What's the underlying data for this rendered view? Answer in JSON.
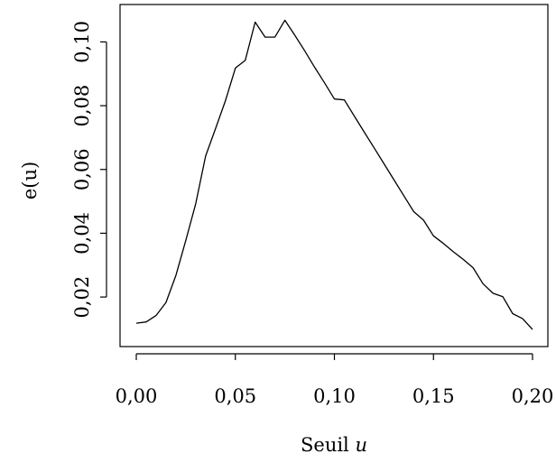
{
  "chart_data": {
    "type": "line",
    "title": "",
    "xlabel": "Seuil",
    "xlabel_var": "u",
    "ylabel": "e(u)",
    "xlim": [
      0.0,
      0.2
    ],
    "ylim": [
      0.0097,
      0.1072
    ],
    "x_ticks": [
      0.0,
      0.05,
      0.1,
      0.15,
      0.2
    ],
    "x_tick_labels": [
      "0,00",
      "0,05",
      "0,10",
      "0,15",
      "0,20"
    ],
    "y_ticks": [
      0.02,
      0.04,
      0.06,
      0.08,
      0.1
    ],
    "y_tick_labels": [
      "0,02",
      "0,04",
      "0,06",
      "0,08",
      "0,10"
    ],
    "grid": false,
    "series": [
      {
        "color": "#000000",
        "x": [
          0.0,
          0.005,
          0.01,
          0.015,
          0.02,
          0.025,
          0.03,
          0.035,
          0.04,
          0.045,
          0.05,
          0.055,
          0.06,
          0.065,
          0.07,
          0.075,
          0.08,
          0.085,
          0.09,
          0.095,
          0.1,
          0.105,
          0.11,
          0.115,
          0.12,
          0.125,
          0.13,
          0.135,
          0.14,
          0.145,
          0.15,
          0.155,
          0.16,
          0.165,
          0.17,
          0.175,
          0.18,
          0.185,
          0.19,
          0.195,
          0.2
        ],
        "y": [
          0.0118,
          0.0122,
          0.0142,
          0.0183,
          0.0268,
          0.0378,
          0.0492,
          0.0642,
          0.0728,
          0.0816,
          0.0918,
          0.0942,
          0.1062,
          0.1015,
          0.1015,
          0.1068,
          0.1021,
          0.0972,
          0.0921,
          0.0872,
          0.0821,
          0.0818,
          0.0768,
          0.0718,
          0.0668,
          0.0618,
          0.0568,
          0.0518,
          0.0468,
          0.0441,
          0.0392,
          0.0368,
          0.0342,
          0.0318,
          0.0292,
          0.0242,
          0.0212,
          0.0201,
          0.0148,
          0.0132,
          0.0098
        ]
      }
    ]
  }
}
